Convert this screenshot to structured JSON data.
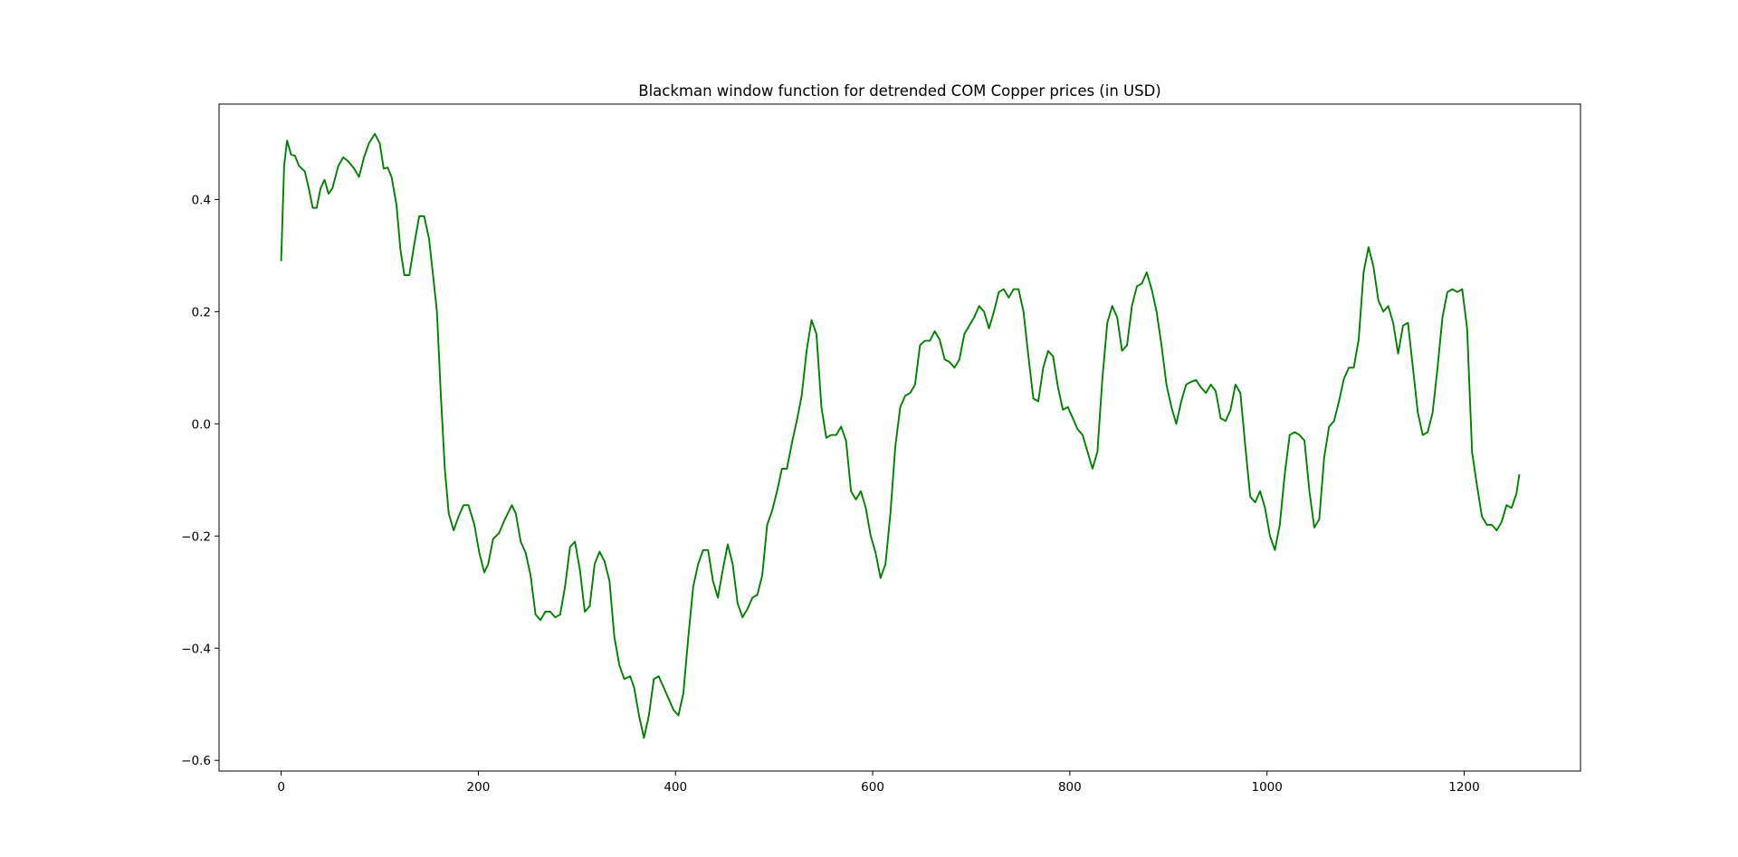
{
  "chart_data": {
    "type": "line",
    "title": "Blackman window function for detrended COM Copper prices (in USD)",
    "xlabel": "",
    "ylabel": "",
    "xlim": [
      -63,
      1318
    ],
    "ylim": [
      -0.619,
      0.57
    ],
    "x_ticks": [
      0,
      200,
      400,
      600,
      800,
      1000,
      1200
    ],
    "y_ticks": [
      -0.6,
      -0.4,
      -0.2,
      0.0,
      0.2,
      0.4
    ],
    "x_tick_labels": [
      "0",
      "200",
      "400",
      "600",
      "800",
      "1000",
      "1200"
    ],
    "y_tick_labels": [
      "−0.6",
      "−0.4",
      "−0.2",
      "0.0",
      "0.2",
      "0.4"
    ],
    "grid": false,
    "legend": "none",
    "series": [
      {
        "color": "#008000",
        "points": [
          [
            0,
            0.29
          ],
          [
            3,
            0.46
          ],
          [
            6,
            0.505
          ],
          [
            10,
            0.48
          ],
          [
            14,
            0.478
          ],
          [
            18,
            0.46
          ],
          [
            24,
            0.45
          ],
          [
            28,
            0.42
          ],
          [
            32,
            0.385
          ],
          [
            36,
            0.385
          ],
          [
            40,
            0.42
          ],
          [
            44,
            0.435
          ],
          [
            48,
            0.41
          ],
          [
            52,
            0.42
          ],
          [
            58,
            0.46
          ],
          [
            63,
            0.475
          ],
          [
            68,
            0.468
          ],
          [
            74,
            0.455
          ],
          [
            79,
            0.44
          ],
          [
            84,
            0.475
          ],
          [
            89,
            0.5
          ],
          [
            95,
            0.517
          ],
          [
            100,
            0.5
          ],
          [
            104,
            0.455
          ],
          [
            108,
            0.457
          ],
          [
            112,
            0.44
          ],
          [
            117,
            0.39
          ],
          [
            121,
            0.31
          ],
          [
            125,
            0.265
          ],
          [
            130,
            0.265
          ],
          [
            135,
            0.32
          ],
          [
            140,
            0.37
          ],
          [
            145,
            0.37
          ],
          [
            150,
            0.33
          ],
          [
            155,
            0.25
          ],
          [
            158,
            0.2
          ],
          [
            162,
            0.05
          ],
          [
            166,
            -0.08
          ],
          [
            170,
            -0.16
          ],
          [
            175,
            -0.19
          ],
          [
            180,
            -0.165
          ],
          [
            185,
            -0.145
          ],
          [
            190,
            -0.145
          ],
          [
            196,
            -0.18
          ],
          [
            201,
            -0.23
          ],
          [
            206,
            -0.265
          ],
          [
            210,
            -0.25
          ],
          [
            215,
            -0.205
          ],
          [
            221,
            -0.195
          ],
          [
            227,
            -0.17
          ],
          [
            234,
            -0.145
          ],
          [
            238,
            -0.16
          ],
          [
            243,
            -0.21
          ],
          [
            248,
            -0.23
          ],
          [
            253,
            -0.27
          ],
          [
            258,
            -0.34
          ],
          [
            263,
            -0.35
          ],
          [
            268,
            -0.335
          ],
          [
            273,
            -0.335
          ],
          [
            278,
            -0.345
          ],
          [
            283,
            -0.34
          ],
          [
            288,
            -0.29
          ],
          [
            293,
            -0.22
          ],
          [
            298,
            -0.21
          ],
          [
            303,
            -0.26
          ],
          [
            308,
            -0.335
          ],
          [
            313,
            -0.325
          ],
          [
            318,
            -0.25
          ],
          [
            323,
            -0.228
          ],
          [
            328,
            -0.245
          ],
          [
            333,
            -0.28
          ],
          [
            338,
            -0.38
          ],
          [
            343,
            -0.43
          ],
          [
            348,
            -0.455
          ],
          [
            354,
            -0.45
          ],
          [
            358,
            -0.47
          ],
          [
            363,
            -0.52
          ],
          [
            368,
            -0.56
          ],
          [
            373,
            -0.52
          ],
          [
            378,
            -0.455
          ],
          [
            383,
            -0.45
          ],
          [
            388,
            -0.47
          ],
          [
            393,
            -0.49
          ],
          [
            398,
            -0.51
          ],
          [
            403,
            -0.52
          ],
          [
            408,
            -0.48
          ],
          [
            413,
            -0.38
          ],
          [
            418,
            -0.29
          ],
          [
            423,
            -0.25
          ],
          [
            428,
            -0.225
          ],
          [
            433,
            -0.225
          ],
          [
            438,
            -0.28
          ],
          [
            443,
            -0.31
          ],
          [
            448,
            -0.26
          ],
          [
            453,
            -0.215
          ],
          [
            458,
            -0.25
          ],
          [
            463,
            -0.32
          ],
          [
            468,
            -0.345
          ],
          [
            473,
            -0.33
          ],
          [
            478,
            -0.31
          ],
          [
            483,
            -0.305
          ],
          [
            488,
            -0.27
          ],
          [
            493,
            -0.18
          ],
          [
            498,
            -0.155
          ],
          [
            503,
            -0.12
          ],
          [
            508,
            -0.08
          ],
          [
            513,
            -0.08
          ],
          [
            518,
            -0.035
          ],
          [
            523,
            0.005
          ],
          [
            528,
            0.05
          ],
          [
            533,
            0.13
          ],
          [
            538,
            0.185
          ],
          [
            543,
            0.16
          ],
          [
            548,
            0.03
          ],
          [
            553,
            -0.025
          ],
          [
            558,
            -0.02
          ],
          [
            563,
            -0.02
          ],
          [
            568,
            -0.005
          ],
          [
            573,
            -0.03
          ],
          [
            578,
            -0.12
          ],
          [
            583,
            -0.135
          ],
          [
            588,
            -0.12
          ],
          [
            593,
            -0.15
          ],
          [
            598,
            -0.2
          ],
          [
            603,
            -0.23
          ],
          [
            608,
            -0.275
          ],
          [
            613,
            -0.25
          ],
          [
            618,
            -0.16
          ],
          [
            623,
            -0.04
          ],
          [
            628,
            0.03
          ],
          [
            633,
            0.05
          ],
          [
            638,
            0.055
          ],
          [
            643,
            0.07
          ],
          [
            648,
            0.14
          ],
          [
            653,
            0.148
          ],
          [
            658,
            0.148
          ],
          [
            663,
            0.165
          ],
          [
            668,
            0.15
          ],
          [
            673,
            0.115
          ],
          [
            678,
            0.11
          ],
          [
            683,
            0.1
          ],
          [
            688,
            0.115
          ],
          [
            693,
            0.16
          ],
          [
            698,
            0.175
          ],
          [
            703,
            0.19
          ],
          [
            708,
            0.21
          ],
          [
            713,
            0.2
          ],
          [
            718,
            0.17
          ],
          [
            723,
            0.2
          ],
          [
            728,
            0.235
          ],
          [
            733,
            0.24
          ],
          [
            738,
            0.225
          ],
          [
            743,
            0.24
          ],
          [
            748,
            0.24
          ],
          [
            753,
            0.2
          ],
          [
            758,
            0.12
          ],
          [
            763,
            0.045
          ],
          [
            768,
            0.04
          ],
          [
            773,
            0.1
          ],
          [
            778,
            0.13
          ],
          [
            783,
            0.12
          ],
          [
            788,
            0.065
          ],
          [
            793,
            0.025
          ],
          [
            798,
            0.03
          ],
          [
            803,
            0.01
          ],
          [
            808,
            -0.01
          ],
          [
            813,
            -0.02
          ],
          [
            818,
            -0.05
          ],
          [
            823,
            -0.08
          ],
          [
            828,
            -0.05
          ],
          [
            833,
            0.08
          ],
          [
            838,
            0.18
          ],
          [
            843,
            0.21
          ],
          [
            848,
            0.19
          ],
          [
            853,
            0.13
          ],
          [
            858,
            0.14
          ],
          [
            863,
            0.21
          ],
          [
            868,
            0.245
          ],
          [
            873,
            0.25
          ],
          [
            878,
            0.27
          ],
          [
            883,
            0.24
          ],
          [
            888,
            0.2
          ],
          [
            893,
            0.14
          ],
          [
            898,
            0.07
          ],
          [
            903,
            0.03
          ],
          [
            908,
            0.0
          ],
          [
            913,
            0.04
          ],
          [
            918,
            0.07
          ],
          [
            923,
            0.075
          ],
          [
            928,
            0.078
          ],
          [
            933,
            0.065
          ],
          [
            938,
            0.055
          ],
          [
            943,
            0.07
          ],
          [
            948,
            0.058
          ],
          [
            953,
            0.01
          ],
          [
            958,
            0.005
          ],
          [
            963,
            0.025
          ],
          [
            968,
            0.07
          ],
          [
            973,
            0.055
          ],
          [
            978,
            -0.04
          ],
          [
            983,
            -0.13
          ],
          [
            988,
            -0.14
          ],
          [
            993,
            -0.12
          ],
          [
            998,
            -0.15
          ],
          [
            1003,
            -0.2
          ],
          [
            1008,
            -0.225
          ],
          [
            1013,
            -0.18
          ],
          [
            1018,
            -0.09
          ],
          [
            1023,
            -0.02
          ],
          [
            1028,
            -0.015
          ],
          [
            1033,
            -0.02
          ],
          [
            1038,
            -0.03
          ],
          [
            1043,
            -0.12
          ],
          [
            1048,
            -0.185
          ],
          [
            1053,
            -0.17
          ],
          [
            1058,
            -0.06
          ],
          [
            1063,
            -0.005
          ],
          [
            1068,
            0.005
          ],
          [
            1073,
            0.04
          ],
          [
            1078,
            0.08
          ],
          [
            1083,
            0.1
          ],
          [
            1088,
            0.1
          ],
          [
            1093,
            0.15
          ],
          [
            1098,
            0.27
          ],
          [
            1103,
            0.315
          ],
          [
            1108,
            0.28
          ],
          [
            1113,
            0.22
          ],
          [
            1118,
            0.2
          ],
          [
            1123,
            0.21
          ],
          [
            1128,
            0.18
          ],
          [
            1133,
            0.125
          ],
          [
            1138,
            0.175
          ],
          [
            1143,
            0.18
          ],
          [
            1148,
            0.1
          ],
          [
            1153,
            0.02
          ],
          [
            1158,
            -0.02
          ],
          [
            1163,
            -0.015
          ],
          [
            1168,
            0.02
          ],
          [
            1173,
            0.1
          ],
          [
            1178,
            0.19
          ],
          [
            1183,
            0.235
          ],
          [
            1188,
            0.24
          ],
          [
            1193,
            0.235
          ],
          [
            1198,
            0.24
          ],
          [
            1203,
            0.17
          ],
          [
            1208,
            -0.05
          ],
          [
            1213,
            -0.11
          ],
          [
            1218,
            -0.165
          ],
          [
            1223,
            -0.18
          ],
          [
            1228,
            -0.18
          ],
          [
            1233,
            -0.19
          ],
          [
            1238,
            -0.175
          ],
          [
            1243,
            -0.145
          ],
          [
            1248,
            -0.15
          ],
          [
            1253,
            -0.125
          ],
          [
            1256,
            -0.09
          ]
        ]
      }
    ]
  }
}
